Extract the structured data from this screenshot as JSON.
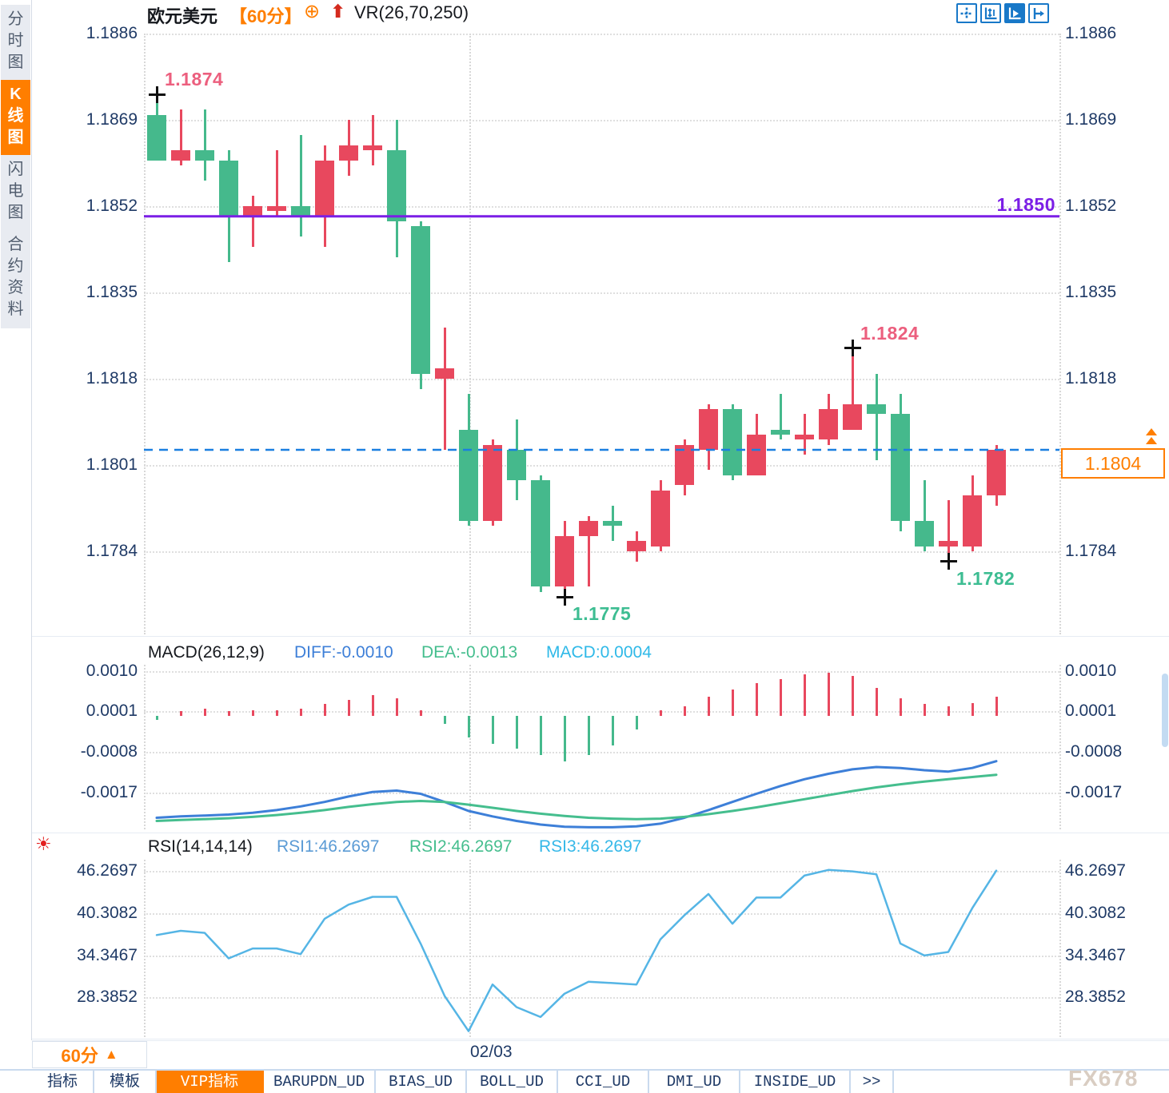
{
  "header": {
    "symbol": "欧元美元",
    "period_badge": "【60分】",
    "indicator_formula": "VR(26,70,250)"
  },
  "sidebar": {
    "tabs": [
      {
        "label": "分时图",
        "active": false
      },
      {
        "label": "K线图",
        "active": true
      },
      {
        "label": "闪电图",
        "active": false
      },
      {
        "label": "合约资料",
        "active": false
      }
    ]
  },
  "bottom_bar": {
    "period_label": "60分",
    "period_arrow": "▲",
    "date_label": "02/03",
    "tabs": [
      {
        "label": "指标",
        "active": false
      },
      {
        "label": "模板",
        "active": false
      },
      {
        "label": "VIP指标",
        "active": true
      },
      {
        "label": "BARUPDN_UD",
        "active": false
      },
      {
        "label": "BIAS_UD",
        "active": false
      },
      {
        "label": "BOLL_UD",
        "active": false
      },
      {
        "label": "CCI_UD",
        "active": false
      },
      {
        "label": "DMI_UD",
        "active": false
      },
      {
        "label": "INSIDE_UD",
        "active": false
      },
      {
        "label": ">>",
        "active": false
      }
    ],
    "watermark": "FX678"
  },
  "colors": {
    "up_red": "#E8485E",
    "down_green": "#45B98C",
    "accent_orange": "#FF7E00",
    "purple_level": "#7B1FE6",
    "dashed_blue": "#1A7FE0",
    "axis_text": "#1F3A66",
    "diff_blue": "#3D7FD8",
    "dea_green": "#45BE8E",
    "macd_cyan": "#2FB9E8",
    "rsi_line": "#55B5E5",
    "pink_label": "#EC5F7E",
    "green_label": "#3DBD92"
  },
  "chart_data": [
    {
      "type": "candlestick",
      "panel": "price",
      "yticks": [
        "1.1886",
        "1.1869",
        "1.1852",
        "1.1835",
        "1.1818",
        "1.1801",
        "1.1784"
      ],
      "ylim": [
        1.1772,
        1.1888
      ],
      "levels": {
        "horizontal_line": "1.1850",
        "current_price": "1.1804"
      },
      "markers": [
        {
          "index": 0,
          "position": "high",
          "label": "1.1874"
        },
        {
          "index": 17,
          "position": "low",
          "label": "1.1775"
        },
        {
          "index": 29,
          "position": "high",
          "label": "1.1824"
        },
        {
          "index": 33,
          "position": "low",
          "label": "1.1782"
        }
      ],
      "candles": [
        [
          1.187,
          1.1874,
          1.1861,
          1.1861
        ],
        [
          1.1861,
          1.1871,
          1.186,
          1.1863
        ],
        [
          1.1863,
          1.1871,
          1.1857,
          1.1861
        ],
        [
          1.1861,
          1.1863,
          1.1841,
          1.185
        ],
        [
          1.185,
          1.1854,
          1.1844,
          1.1852
        ],
        [
          1.1851,
          1.1863,
          1.185,
          1.1852
        ],
        [
          1.1852,
          1.1866,
          1.1846,
          1.185
        ],
        [
          1.185,
          1.1864,
          1.1844,
          1.1861
        ],
        [
          1.1861,
          1.1869,
          1.1858,
          1.1864
        ],
        [
          1.1863,
          1.187,
          1.186,
          1.1864
        ],
        [
          1.1863,
          1.1869,
          1.1842,
          1.1849
        ],
        [
          1.1848,
          1.1849,
          1.1816,
          1.1819
        ],
        [
          1.1818,
          1.1828,
          1.1804,
          1.182
        ],
        [
          1.1808,
          1.1815,
          1.1789,
          1.179
        ],
        [
          1.179,
          1.1806,
          1.1789,
          1.1805
        ],
        [
          1.1804,
          1.181,
          1.1794,
          1.1798
        ],
        [
          1.1798,
          1.1799,
          1.1776,
          1.1777
        ],
        [
          1.1777,
          1.179,
          1.1775,
          1.1787
        ],
        [
          1.1787,
          1.1791,
          1.1777,
          1.179
        ],
        [
          1.179,
          1.1793,
          1.1786,
          1.1789
        ],
        [
          1.1784,
          1.1788,
          1.1782,
          1.1786
        ],
        [
          1.1785,
          1.1798,
          1.1784,
          1.1796
        ],
        [
          1.1797,
          1.1806,
          1.1795,
          1.1805
        ],
        [
          1.1804,
          1.1813,
          1.18,
          1.1812
        ],
        [
          1.1812,
          1.1813,
          1.1798,
          1.1799
        ],
        [
          1.1799,
          1.1811,
          1.1799,
          1.1807
        ],
        [
          1.1808,
          1.1815,
          1.1806,
          1.1807
        ],
        [
          1.1806,
          1.1811,
          1.1803,
          1.1807
        ],
        [
          1.1806,
          1.1815,
          1.1805,
          1.1812
        ],
        [
          1.1808,
          1.1824,
          1.1808,
          1.1813
        ],
        [
          1.1813,
          1.1819,
          1.1802,
          1.1811
        ],
        [
          1.1811,
          1.1815,
          1.1788,
          1.179
        ],
        [
          1.179,
          1.1798,
          1.1784,
          1.1785
        ],
        [
          1.1785,
          1.1794,
          1.1782,
          1.1786
        ],
        [
          1.1785,
          1.1799,
          1.1784,
          1.1795
        ],
        [
          1.1795,
          1.1805,
          1.1793,
          1.1804
        ]
      ]
    },
    {
      "type": "bar",
      "panel": "macd",
      "title": "MACD(26,12,9)",
      "legend": [
        {
          "name": "DIFF",
          "label": "DIFF:-0.0010"
        },
        {
          "name": "DEA",
          "label": "DEA:-0.0013"
        },
        {
          "name": "MACD",
          "label": "MACD:0.0004"
        }
      ],
      "yticks": [
        "0.0010",
        "0.0001",
        "-0.0008",
        "-0.0017"
      ],
      "histogram": [
        -8e-05,
        0.0001,
        0.00015,
        0.0001,
        0.00012,
        0.00012,
        0.00016,
        0.00026,
        0.00036,
        0.00046,
        0.00038,
        0.00012,
        -0.00018,
        -0.00048,
        -0.00062,
        -0.00072,
        -0.00086,
        -0.001,
        -0.00086,
        -0.00066,
        -0.0003,
        0.00012,
        0.00022,
        0.00042,
        0.00058,
        0.00072,
        0.00082,
        0.00092,
        0.00096,
        0.00088,
        0.00062,
        0.00038,
        0.00026,
        0.00022,
        0.00028,
        0.00042
      ],
      "series": [
        {
          "name": "DIFF",
          "values": [
            -0.00225,
            -0.00222,
            -0.0022,
            -0.00218,
            -0.00214,
            -0.00208,
            -0.002,
            -0.0019,
            -0.00178,
            -0.00168,
            -0.00165,
            -0.00172,
            -0.0019,
            -0.0021,
            -0.00222,
            -0.00232,
            -0.0024,
            -0.00245,
            -0.00246,
            -0.00246,
            -0.00244,
            -0.00238,
            -0.00225,
            -0.00208,
            -0.0019,
            -0.00172,
            -0.00155,
            -0.0014,
            -0.00128,
            -0.00118,
            -0.00113,
            -0.00115,
            -0.0012,
            -0.00123,
            -0.00115,
            -0.001
          ]
        },
        {
          "name": "DEA",
          "values": [
            -0.00232,
            -0.0023,
            -0.00228,
            -0.00226,
            -0.00223,
            -0.00219,
            -0.00214,
            -0.00208,
            -0.00201,
            -0.00195,
            -0.0019,
            -0.00188,
            -0.0019,
            -0.00196,
            -0.00203,
            -0.0021,
            -0.00216,
            -0.00221,
            -0.00225,
            -0.00227,
            -0.00228,
            -0.00227,
            -0.00223,
            -0.00217,
            -0.0021,
            -0.00202,
            -0.00193,
            -0.00184,
            -0.00175,
            -0.00166,
            -0.00158,
            -0.00151,
            -0.00145,
            -0.0014,
            -0.00135,
            -0.0013
          ]
        }
      ]
    },
    {
      "type": "line",
      "panel": "rsi",
      "title": "RSI(14,14,14)",
      "legend": [
        {
          "name": "RSI1",
          "label": "RSI1:46.2697"
        },
        {
          "name": "RSI2",
          "label": "RSI2:46.2697"
        },
        {
          "name": "RSI3",
          "label": "RSI3:46.2697"
        }
      ],
      "yticks": [
        "46.2697",
        "40.3082",
        "34.3467",
        "28.3852"
      ],
      "values": [
        37.2,
        37.8,
        37.5,
        33.9,
        35.3,
        35.3,
        34.5,
        39.5,
        41.5,
        42.6,
        42.6,
        36.0,
        28.6,
        23.6,
        30.2,
        27.0,
        25.6,
        28.9,
        30.6,
        30.4,
        30.2,
        36.6,
        40.0,
        43.0,
        38.8,
        42.5,
        42.5,
        45.6,
        46.4,
        46.2,
        45.8,
        36.0,
        34.3,
        34.8,
        41.0,
        46.3
      ]
    }
  ]
}
